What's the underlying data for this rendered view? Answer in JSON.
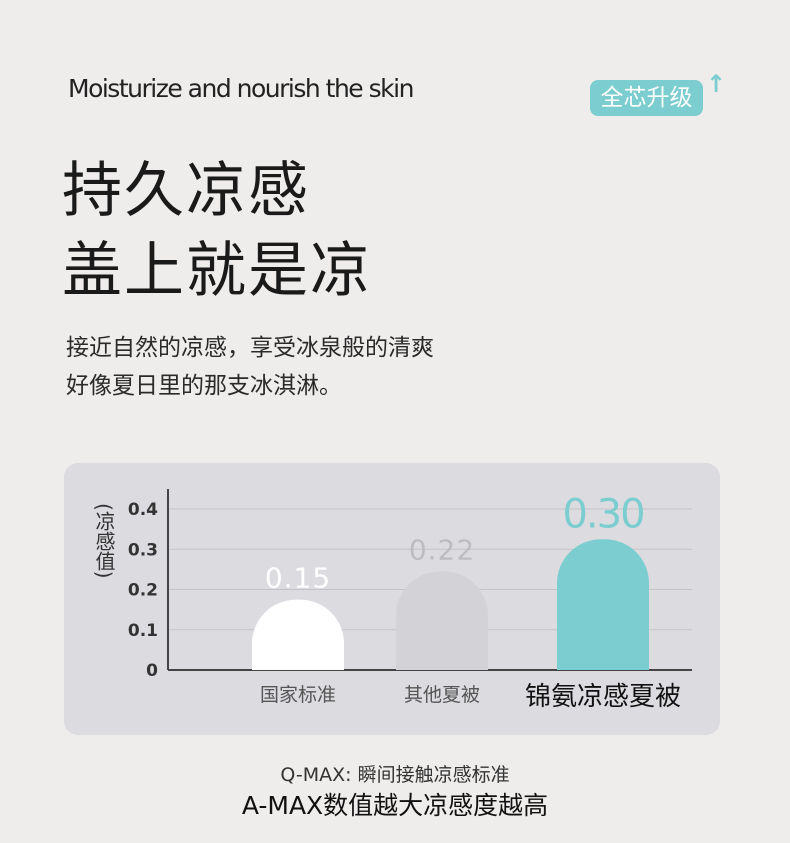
{
  "subtitle": "Moisturize and nourish the skin",
  "badge": "全芯升级",
  "badge_icon": "arrow-up-icon",
  "headline": [
    "持久凉感",
    "盖上就是凉"
  ],
  "description": [
    "接近自然的凉感，享受冰泉般的清爽",
    "好像夏日里的那支冰淇淋。"
  ],
  "chart_data": {
    "type": "bar",
    "ylabel": "(凉感值)",
    "categories": [
      "国家标准",
      "其他夏被",
      "锦氨凉感夏被"
    ],
    "values": [
      0.15,
      0.22,
      0.3
    ],
    "data_labels": [
      "0.15",
      "0.22",
      "0.30"
    ],
    "yticks": [
      "0",
      "0.1",
      "0.2",
      "0.3",
      "0.4"
    ],
    "ylim": [
      0,
      0.4
    ],
    "grid": true,
    "colors": [
      "#ffffff",
      "#d3d2d6",
      "#7ccdd0"
    ],
    "label_colors": [
      "#ffffff",
      "#bdbcc0",
      "#7ccdd0"
    ]
  },
  "footer": {
    "line1": "Q-MAX: 瞬间接触凉感标准",
    "line2": "A-MAX数值越大凉感度越高"
  }
}
